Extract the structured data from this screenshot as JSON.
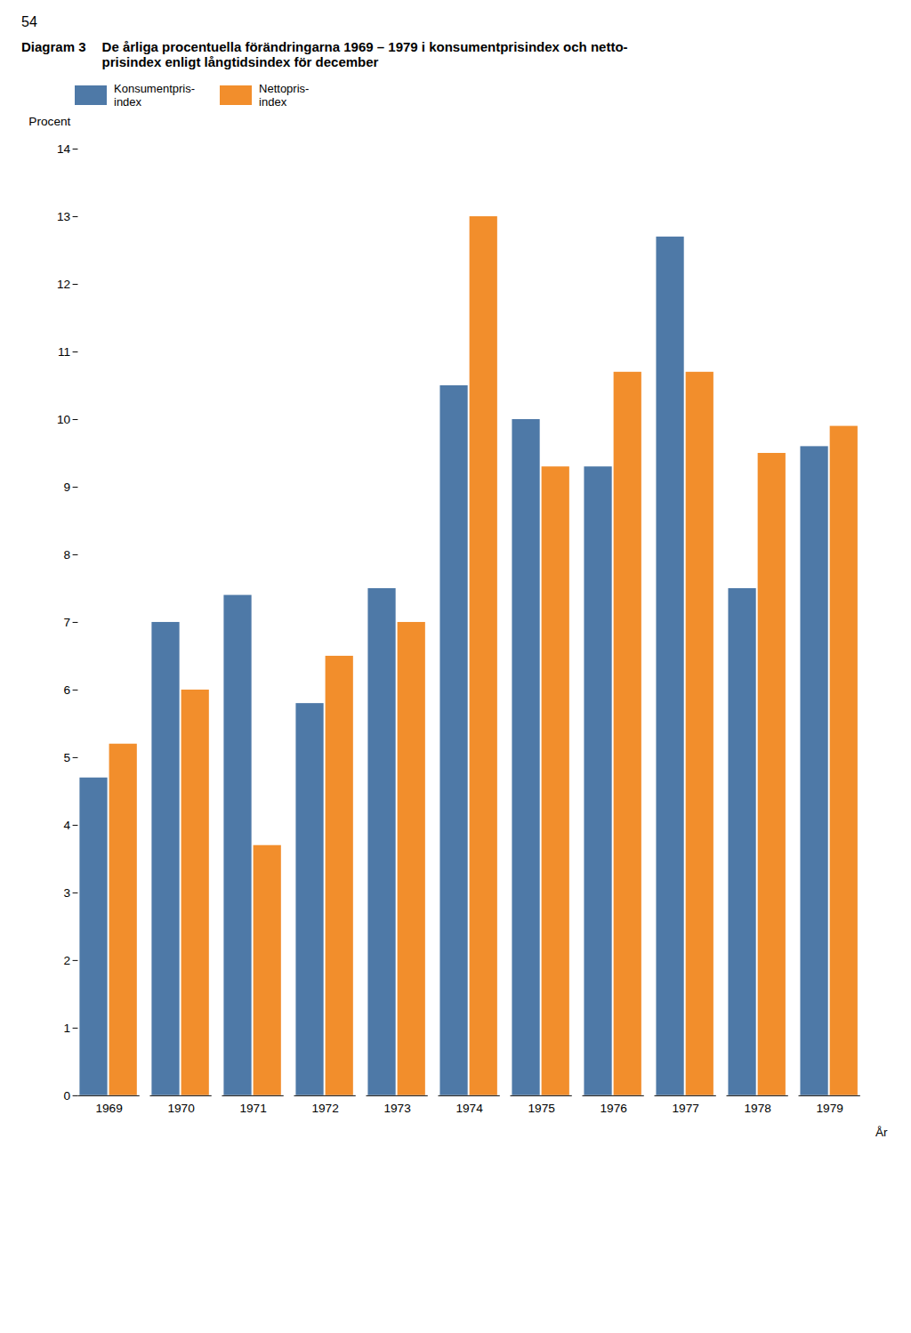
{
  "chart_data": {
    "type": "bar",
    "annotations": [
      "54"
    ],
    "title": "Diagram 3",
    "subtitle": [
      "De årliga procentuella förändringarna 1969 – 1979 i konsumentprisindex och netto-",
      "prisindex enligt långtidsindex för december"
    ],
    "xlabel": "År",
    "ylabel": "Procent",
    "categories": [
      "1969",
      "1970",
      "1971",
      "1972",
      "1973",
      "1974",
      "1975",
      "1976",
      "1977",
      "1978",
      "1979"
    ],
    "series": [
      {
        "name": "Konsumentpris-\nindex",
        "values": [
          4.7,
          7.0,
          7.4,
          5.8,
          7.5,
          10.5,
          10.0,
          9.3,
          12.7,
          7.5,
          9.6
        ]
      },
      {
        "name": "Nettopris-\nindex",
        "values": [
          5.2,
          6.0,
          3.7,
          6.5,
          7.0,
          13.0,
          9.3,
          10.7,
          10.7,
          9.5,
          9.9
        ]
      }
    ],
    "ylim": [
      0,
      14
    ],
    "yticks": [
      0,
      1,
      2,
      3,
      4,
      5,
      6,
      7,
      8,
      9,
      10,
      11,
      12,
      13,
      14
    ],
    "grid": false,
    "legend": "top-left"
  }
}
